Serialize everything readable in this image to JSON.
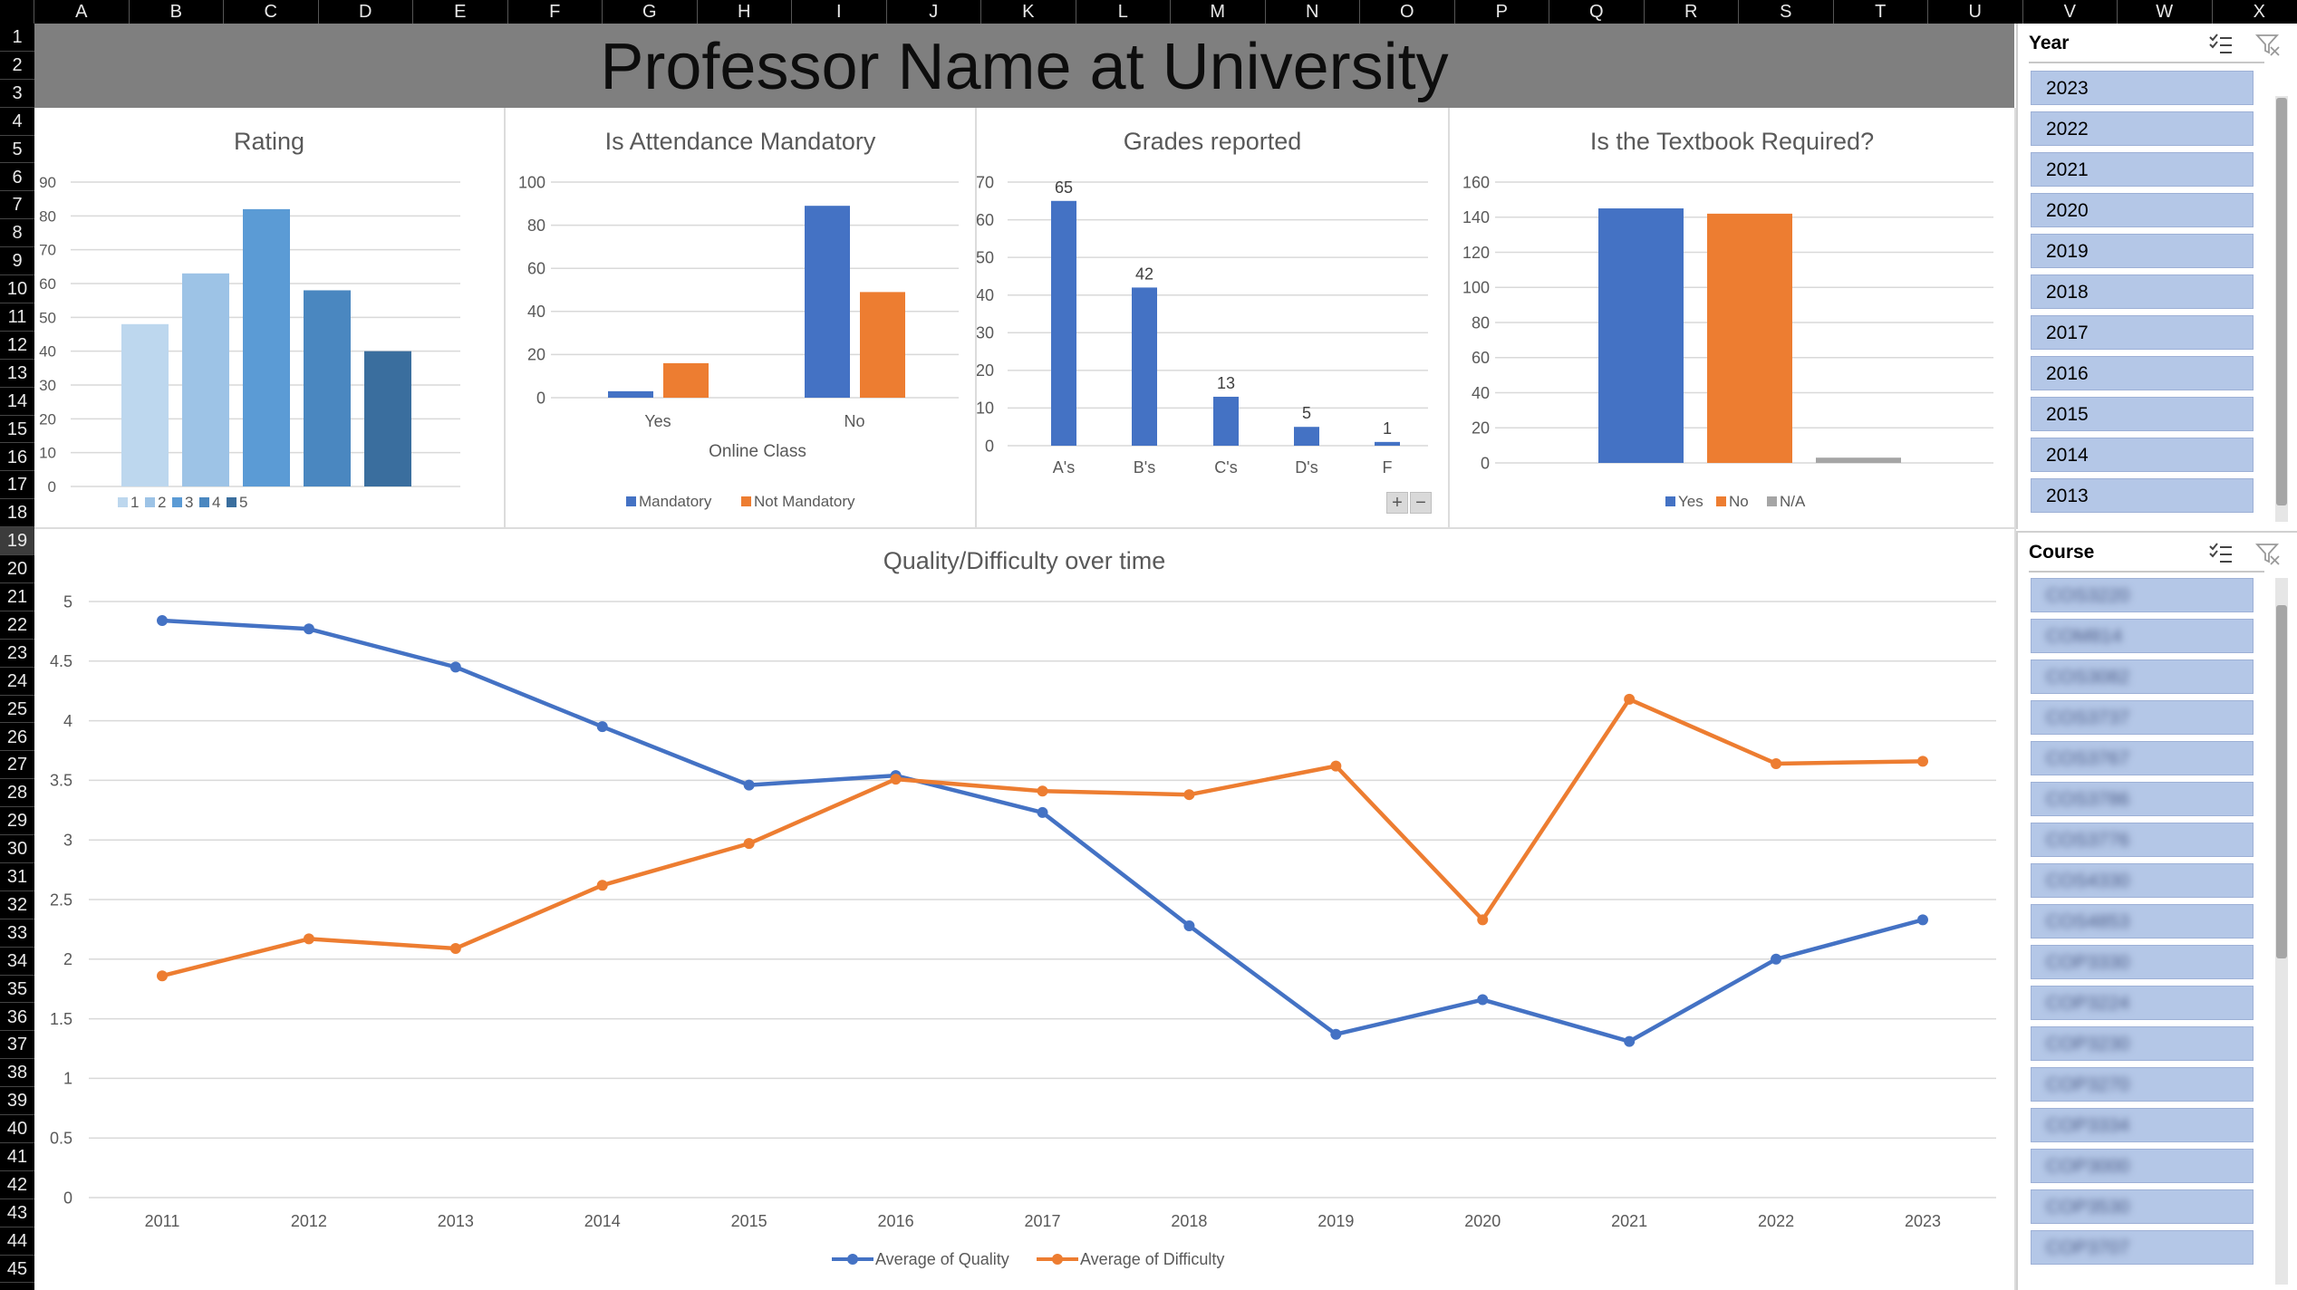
{
  "sheet": {
    "columns": [
      "A",
      "B",
      "C",
      "D",
      "E",
      "F",
      "G",
      "H",
      "I",
      "J",
      "K",
      "L",
      "M",
      "N",
      "O",
      "P",
      "Q",
      "R",
      "S",
      "T",
      "U",
      "V",
      "W",
      "X"
    ],
    "rows": [
      "1",
      "2",
      "3",
      "4",
      "5",
      "6",
      "7",
      "8",
      "9",
      "10",
      "11",
      "12",
      "13",
      "14",
      "15",
      "16",
      "17",
      "18",
      "19",
      "20",
      "21",
      "22",
      "23",
      "24",
      "25",
      "26",
      "27",
      "28",
      "29",
      "30",
      "31",
      "32",
      "33",
      "34",
      "35",
      "36",
      "37",
      "38",
      "39",
      "40",
      "41",
      "42",
      "43",
      "44",
      "45"
    ],
    "selected_row": "19"
  },
  "banner": {
    "title": "Professor Name at University"
  },
  "chart_data": [
    {
      "id": "rating",
      "type": "bar",
      "title": "Rating",
      "categories": [
        "1",
        "2",
        "3",
        "4",
        "5"
      ],
      "values": [
        48,
        63,
        82,
        58,
        40
      ],
      "colors": [
        "#bdd7ee",
        "#9dc3e6",
        "#5b9bd5",
        "#4a87c0",
        "#3a6e9e"
      ],
      "yticks": [
        "90",
        "80",
        "70",
        "60",
        "50",
        "40",
        "30",
        "20",
        "10",
        "0"
      ],
      "ylim": [
        0,
        90
      ],
      "legend": [
        "1",
        "2",
        "3",
        "4",
        "5"
      ]
    },
    {
      "id": "attendance",
      "type": "bar",
      "title": "Is Attendance Mandatory",
      "categories": [
        "Yes",
        "No"
      ],
      "xlabel": "Online Class",
      "series": [
        {
          "name": "Mandatory",
          "values": [
            3,
            89
          ],
          "color": "#4472c4"
        },
        {
          "name": "Not Mandatory",
          "values": [
            16,
            49
          ],
          "color": "#ed7d31"
        }
      ],
      "yticks": [
        "100",
        "80",
        "60",
        "40",
        "20",
        "0"
      ],
      "ylim": [
        0,
        100
      ]
    },
    {
      "id": "grades",
      "type": "bar",
      "title": "Grades reported",
      "categories": [
        "A's",
        "B's",
        "C's",
        "D's",
        "F"
      ],
      "values": [
        65,
        42,
        13,
        5,
        1
      ],
      "data_labels": [
        "65",
        "42",
        "13",
        "5",
        "1"
      ],
      "color": "#4472c4",
      "yticks": [
        "70",
        "60",
        "50",
        "40",
        "30",
        "20",
        "10",
        "0"
      ],
      "ylim": [
        0,
        70
      ]
    },
    {
      "id": "textbook",
      "type": "bar",
      "title": "Is the Textbook Required?",
      "categories": [
        "Yes",
        "No",
        "N/A"
      ],
      "values": [
        145,
        142,
        3
      ],
      "colors": [
        "#4472c4",
        "#ed7d31",
        "#a5a5a5"
      ],
      "yticks": [
        "160",
        "140",
        "120",
        "100",
        "80",
        "60",
        "40",
        "20",
        "0"
      ],
      "ylim": [
        0,
        160
      ],
      "legend": [
        "Yes",
        "No",
        "N/A"
      ]
    },
    {
      "id": "quality",
      "type": "line",
      "title": "Quality/Difficulty over time",
      "x": [
        "2011",
        "2012",
        "2013",
        "2014",
        "2015",
        "2016",
        "2017",
        "2018",
        "2019",
        "2020",
        "2021",
        "2022",
        "2023"
      ],
      "series": [
        {
          "name": "Average of Quality",
          "color": "#4472c4",
          "values": [
            4.84,
            4.77,
            4.45,
            3.95,
            3.46,
            3.54,
            3.23,
            2.28,
            1.37,
            1.66,
            1.31,
            2.0,
            2.33
          ]
        },
        {
          "name": "Average of Difficulty",
          "color": "#ed7d31",
          "values": [
            1.86,
            2.17,
            2.09,
            2.62,
            2.97,
            3.51,
            3.41,
            3.38,
            3.62,
            2.33,
            4.18,
            3.64,
            3.66
          ]
        }
      ],
      "yticks": [
        "5",
        "4.5",
        "4",
        "3.5",
        "3",
        "2.5",
        "2",
        "1.5",
        "1",
        "0.5",
        "0"
      ],
      "ylim": [
        0,
        5
      ]
    }
  ],
  "zoom_buttons": {
    "plus": "+",
    "minus": "−"
  },
  "slicer_year": {
    "header": "Year",
    "items": [
      "2023",
      "2022",
      "2021",
      "2020",
      "2019",
      "2018",
      "2017",
      "2016",
      "2015",
      "2014",
      "2013"
    ]
  },
  "slicer_course": {
    "header": "Course",
    "items": [
      "COS3220",
      "COM814",
      "COS3082",
      "COS3737",
      "COS3767",
      "COS3786",
      "COS3776",
      "COS4330",
      "COS4853",
      "COP3330",
      "COP3224",
      "COP3230",
      "COP3270",
      "COP3334",
      "COP3000",
      "COP3530",
      "COP3707"
    ]
  }
}
